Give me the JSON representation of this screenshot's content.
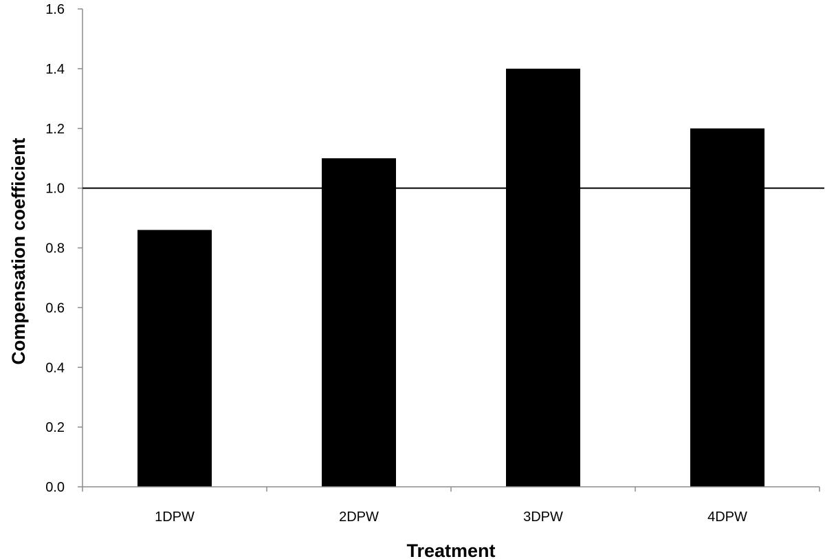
{
  "chart_data": {
    "type": "bar",
    "title": "",
    "xlabel": "Treatment",
    "ylabel": "Compensation coefficient",
    "categories": [
      "1DPW",
      "2DPW",
      "3DPW",
      "4DPW"
    ],
    "values": [
      0.86,
      1.1,
      1.4,
      1.2
    ],
    "ylim": [
      0,
      1.6
    ],
    "yticks": [
      "0.0",
      "0.2",
      "0.4",
      "0.6",
      "0.8",
      "1.0",
      "1.2",
      "1.4",
      "1.6"
    ],
    "reference_line": 1.0,
    "bar_color": "#000000",
    "axis_color": "#8c8c8c",
    "grid": false,
    "legend": "none"
  }
}
